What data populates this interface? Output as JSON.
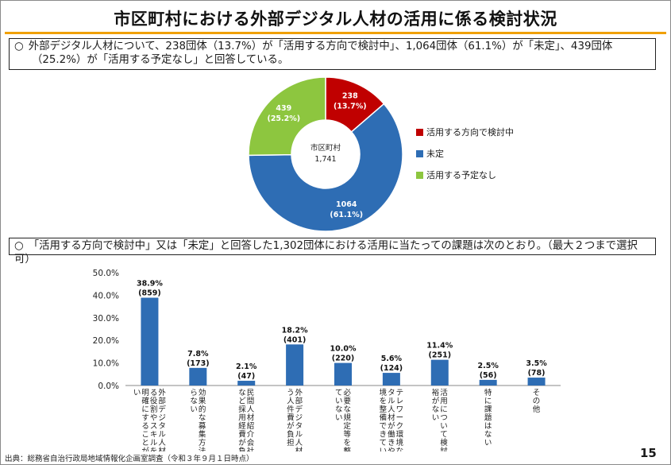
{
  "title": "市区町村における外部デジタル人材の活用に係る検討状況",
  "summary1": {
    "bullet": "○",
    "line1": "外部デジタル人材について、238団体（13.7%）が「活用する方向で検討中」、1,064団体（61.1%）が「未定」、439団体",
    "line2": "（25.2%）が「活用する予定なし」と回答している。"
  },
  "summary2": {
    "bullet": "○",
    "text": "「活用する方向で検討中」又は「未定」と回答した1,302団体における活用に当たっての課題は次のとおり。（最大２つまで選択可）"
  },
  "colors": {
    "accent": "#f0a000",
    "red": "#c00000",
    "blue": "#2e6db4",
    "green": "#8dc63f"
  },
  "chart_data": [
    {
      "type": "pie",
      "donut": true,
      "center_label": "市区町村",
      "center_value": "1,741",
      "legend_placement": "right",
      "slices": [
        {
          "name": "活用する方向で検討中",
          "value": 238,
          "label": "238",
          "pct_label": "(13.7%)",
          "color": "#c00000"
        },
        {
          "name": "未定",
          "value": 1064,
          "label": "1064",
          "pct_label": "(61.1%)",
          "color": "#2e6db4"
        },
        {
          "name": "活用する予定なし",
          "value": 439,
          "label": "439",
          "pct_label": "(25.2%)",
          "color": "#8dc63f"
        }
      ]
    },
    {
      "type": "bar",
      "ylim": [
        0,
        50
      ],
      "yticks": [
        "0.0%",
        "10.0%",
        "20.0%",
        "30.0%",
        "40.0%",
        "50.0%"
      ],
      "grid": false,
      "categories": [
        "外部デジタル人材に求める役割やスキルを整理・明確にすることができない",
        "効果的な募集方法が分からない",
        "民間人材紹介会社の利用など採用経費が負担",
        "外部デジタル人材に支払う人件費が負担",
        "必要な規定等を整備できていない",
        "テレワーク環境などデジタル人材が働きやすい環境を整備できていない",
        "活用について検討する余裕がない",
        "特に課題はない",
        "その他"
      ],
      "values": [
        38.9,
        7.8,
        2.1,
        18.2,
        10.0,
        5.6,
        11.4,
        2.5,
        3.5
      ],
      "value_labels": [
        "38.9%",
        "7.8%",
        "2.1%",
        "18.2%",
        "10.0%",
        "5.6%",
        "11.4%",
        "2.5%",
        "3.5%"
      ],
      "count_labels": [
        "(859)",
        "(173)",
        "(47)",
        "(401)",
        "(220)",
        "(124)",
        "(251)",
        "(56)",
        "(78)"
      ],
      "color": "#2e6db4"
    }
  ],
  "source": "出典：総務省自治行政局地域情報化企画室調査（令和３年９月１日時点）",
  "page_number": "15"
}
